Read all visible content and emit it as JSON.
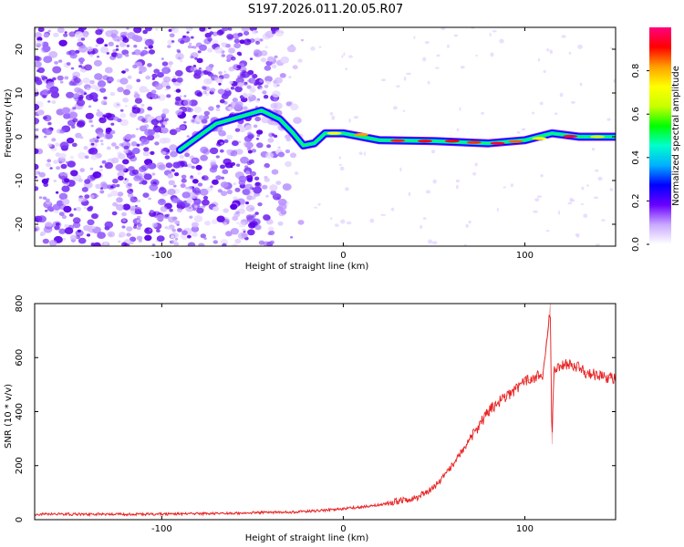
{
  "title": "S197.2026.011.20.05.R07",
  "chart_data": [
    {
      "type": "heatmap",
      "xlabel": "Height of straight line (km)",
      "ylabel": "Frequency (Hz)",
      "xlim": [
        -170,
        150
      ],
      "ylim": [
        -25,
        25
      ],
      "x_ticks": [
        -100,
        0,
        100
      ],
      "x_tick_labels": [
        "-100",
        "0",
        "100"
      ],
      "y_ticks": [
        -20,
        -10,
        0,
        10,
        20
      ],
      "y_tick_labels": [
        "-20",
        "-10",
        "0",
        "10",
        "20"
      ],
      "colorbar": {
        "label": "Normalized spectral amplitude",
        "range": [
          0,
          1
        ],
        "ticks": [
          0.0,
          0.2,
          0.4,
          0.6,
          0.8
        ],
        "tick_labels": [
          "0.0",
          "0.2",
          "0.4",
          "0.6",
          "0.8"
        ],
        "colors": [
          "#ffffff",
          "#c9a8ff",
          "#6a00ff",
          "#0000ff",
          "#00b0ff",
          "#00ffcc",
          "#00ff00",
          "#c8ff00",
          "#ffff00",
          "#ffa000",
          "#ff0000",
          "#ff0080"
        ]
      },
      "trace_points": [
        {
          "x": -90,
          "y": -3
        },
        {
          "x": -70,
          "y": 3
        },
        {
          "x": -45,
          "y": 6
        },
        {
          "x": -35,
          "y": 4
        },
        {
          "x": -28,
          "y": 1
        },
        {
          "x": -22,
          "y": -2
        },
        {
          "x": -16,
          "y": -1.5
        },
        {
          "x": -10,
          "y": 0.8
        },
        {
          "x": 0,
          "y": 0.8
        },
        {
          "x": 20,
          "y": -0.8
        },
        {
          "x": 50,
          "y": -1
        },
        {
          "x": 80,
          "y": -1.5
        },
        {
          "x": 100,
          "y": -0.8
        },
        {
          "x": 115,
          "y": 0.8
        },
        {
          "x": 130,
          "y": 0
        },
        {
          "x": 150,
          "y": 0
        }
      ]
    },
    {
      "type": "line",
      "xlabel": "Height of straight line (km)",
      "ylabel": "SNR (10 * v/v)",
      "xlim": [
        -170,
        150
      ],
      "ylim": [
        0,
        800
      ],
      "x_ticks": [
        -100,
        0,
        100
      ],
      "x_tick_labels": [
        "-100",
        "0",
        "100"
      ],
      "y_ticks": [
        0,
        200,
        400,
        600,
        800
      ],
      "y_tick_labels": [
        "0",
        "200",
        "400",
        "600",
        "800"
      ],
      "series": [
        {
          "name": "SNR",
          "color": "#e82020",
          "x": [
            -170,
            -140,
            -110,
            -80,
            -50,
            -20,
            0,
            20,
            40,
            50,
            60,
            70,
            80,
            90,
            100,
            110,
            113,
            114,
            115,
            116,
            118,
            125,
            135,
            150
          ],
          "y": [
            20,
            20,
            20,
            22,
            25,
            30,
            40,
            55,
            80,
            120,
            200,
            300,
            400,
            460,
            510,
            540,
            700,
            800,
            280,
            560,
            560,
            580,
            540,
            520
          ]
        }
      ]
    }
  ]
}
